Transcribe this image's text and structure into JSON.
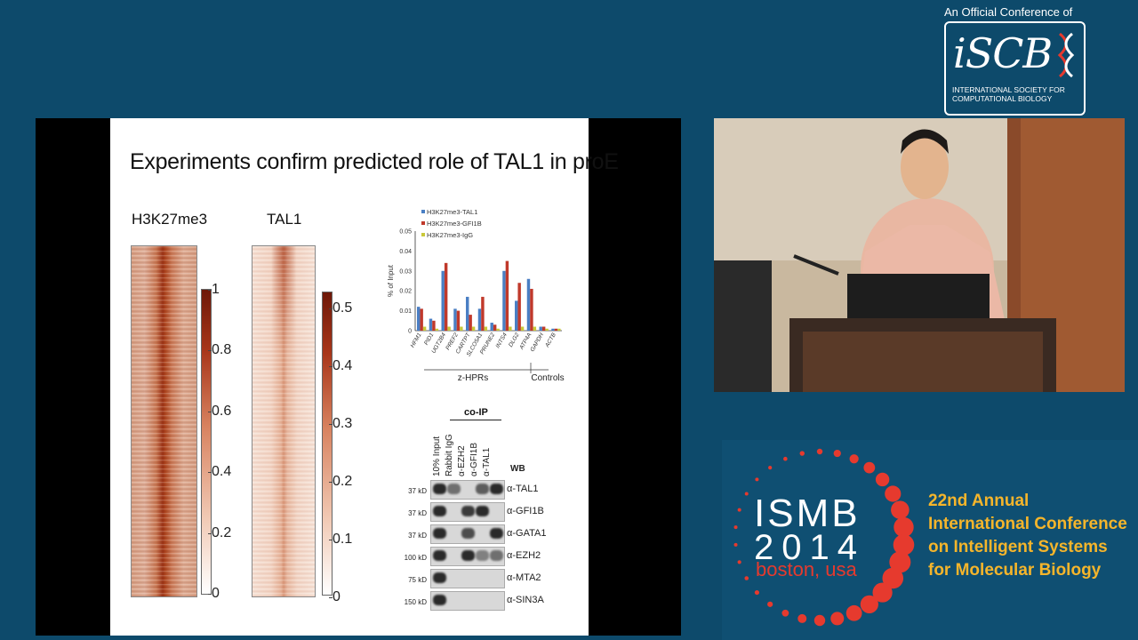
{
  "slide": {
    "title": "Experiments confirm predicted role of TAL1 in proE",
    "heatmap1_label": "H3K27me3",
    "heatmap2_label": "TAL1",
    "colorbar1_ticks": [
      "1",
      "0.8",
      "0.6",
      "0.4",
      "0.2",
      "0"
    ],
    "colorbar2_ticks": [
      "0.5",
      "0.4",
      "0.3",
      "0.2",
      "0.1",
      "0"
    ],
    "chart_legend": [
      "H3K27me3-TAL1",
      "H3K27me3-GFI1B",
      "H3K27me3-IgG"
    ],
    "chart_ylabel": "% of Input",
    "chart_yticks": [
      "0.05",
      "0.04",
      "0.03",
      "0.02",
      "0.01",
      "0"
    ],
    "chart_genes": [
      "HFM1",
      "PID1",
      "UGT2B4",
      "PREF2",
      "CARTPT",
      "SLCO5A1",
      "PRUNE2",
      "INTS4",
      "DLG2",
      "ATP4A",
      "GAPDH",
      "ACTB"
    ],
    "chart_group1": "z-HPRs",
    "chart_group2": "Controls",
    "coip_header": "co-IP",
    "coip_lanes": [
      "10% Input",
      "Rabbit IgG",
      "α-EZH2",
      "α-GFI1B",
      "α-TAL1"
    ],
    "wb_label": "WB",
    "blot_rows": [
      {
        "kd": "37 kD",
        "antibody": "α-TAL1"
      },
      {
        "kd": "37 kD",
        "antibody": "α-GFI1B"
      },
      {
        "kd": "37 kD",
        "antibody": "α-GATA1"
      },
      {
        "kd": "100 kD",
        "antibody": "α-EZH2"
      },
      {
        "kd": "75 kD",
        "antibody": "α-MTA2"
      },
      {
        "kd": "150 kD",
        "antibody": "α-SIN3A"
      }
    ]
  },
  "chart_data": {
    "type": "bar",
    "categories": [
      "HFM1",
      "PID1",
      "UGT2B4",
      "PREF2",
      "CARTPT",
      "SLCO5A1",
      "PRUNE2",
      "INTS4",
      "DLG2",
      "ATP4A",
      "GAPDH",
      "ACTB"
    ],
    "series": [
      {
        "name": "H3K27me3-TAL1",
        "values": [
          0.012,
          0.006,
          0.03,
          0.011,
          0.017,
          0.011,
          0.004,
          0.03,
          0.015,
          0.026,
          0.002,
          0.001
        ]
      },
      {
        "name": "H3K27me3-GFI1B",
        "values": [
          0.011,
          0.005,
          0.034,
          0.01,
          0.008,
          0.017,
          0.003,
          0.035,
          0.024,
          0.021,
          0.002,
          0.001
        ]
      },
      {
        "name": "H3K27me3-IgG",
        "values": [
          0.002,
          0.001,
          0.002,
          0.002,
          0.002,
          0.002,
          0.001,
          0.002,
          0.002,
          0.002,
          0.001,
          0.001
        ]
      }
    ],
    "ylabel": "% of Input",
    "ylim": [
      0,
      0.05
    ],
    "colors": [
      "#4a7fc4",
      "#c0392b",
      "#c9c83a"
    ]
  },
  "branding": {
    "iscb_caption": "An Official Conference of",
    "iscb_name": "iSCB",
    "iscb_sub1": "INTERNATIONAL SOCIETY FOR",
    "iscb_sub2": "COMPUTATIONAL BIOLOGY",
    "ismb_name": "ISMB",
    "ismb_year": "2014",
    "ismb_city": "boston, usa",
    "conference_lines": [
      "22nd Annual",
      "International Conference",
      "on Intelligent Systems",
      "for Molecular Biology"
    ]
  },
  "colors": {
    "background": "#0d4a6b",
    "ismb_dots": "#e63a2e",
    "conference_text": "#f5b52b"
  }
}
